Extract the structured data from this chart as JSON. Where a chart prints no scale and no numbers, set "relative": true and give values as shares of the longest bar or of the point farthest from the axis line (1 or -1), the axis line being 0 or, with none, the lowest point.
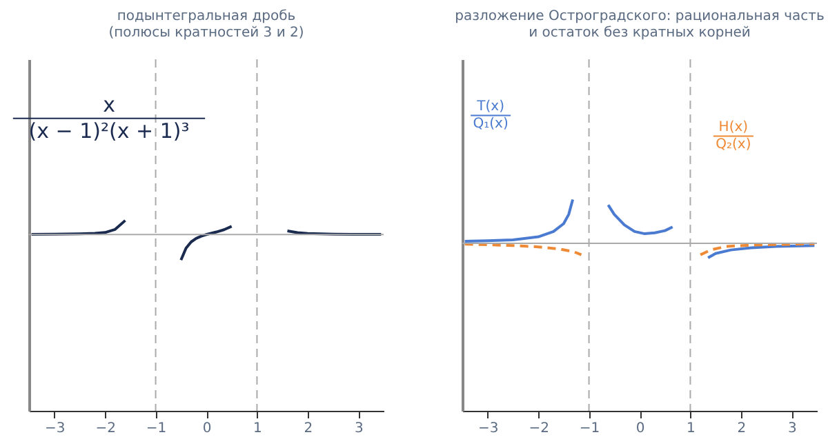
{
  "chart_data": [
    {
      "type": "line",
      "title": "подынтегральная дробь\n(полюсы кратностей 3 и 2)",
      "relative": true,
      "xlim": [
        -3.5,
        3.5
      ],
      "xticks": [
        -3,
        -2,
        -1,
        0,
        1,
        2,
        3
      ],
      "series": [
        {
          "name": "x\n(x − 1)²(x + 1)³",
          "color": "#1b2b4f",
          "line_style": "solid",
          "x": [
            -3.45,
            -3,
            -2.5,
            -2.2,
            -2,
            -1.8,
            -1.6,
            -1.1,
            -0.5,
            -0.4,
            -0.3,
            -0.2,
            -0.1,
            0,
            0.2,
            0.35,
            0.5,
            1.1,
            1.6,
            1.8,
            2,
            2.5,
            3,
            3.45
          ],
          "values": [
            0.01,
            0.013,
            0.03,
            0.05,
            0.08,
            0.2,
            0.55,
            null,
            -1,
            -0.53,
            -0.29,
            -0.15,
            -0.064,
            0,
            0.1,
            0.19,
            0.32,
            null,
            0.14,
            0.072,
            0.042,
            0.015,
            0.007,
            0.004
          ]
        }
      ],
      "ref_lines": [
        {
          "axis": "x",
          "value": -1,
          "color": "#aaaaaa",
          "line_style": "dashed"
        },
        {
          "axis": "x",
          "value": 1,
          "color": "#aaaaaa",
          "line_style": "dashed"
        },
        {
          "axis": "y",
          "value": 0,
          "color": "#aaaaaa",
          "line_style": "solid"
        }
      ]
    },
    {
      "type": "line",
      "title": "разложение Остроградского: рациональная часть\nи остаток без кратных корней",
      "relative": true,
      "xlim": [
        -3.5,
        3.5
      ],
      "xticks": [
        -3,
        -2,
        -1,
        0,
        1,
        2,
        3
      ],
      "series": [
        {
          "name": "T(x)\nQ₁(x)",
          "color": "#4a7bd0",
          "line_style": "solid",
          "x": [
            -3.45,
            -3,
            -2.5,
            -2,
            -1.7,
            -1.5,
            -1.4,
            -1.32,
            -1,
            -0.62,
            -0.5,
            -0.3,
            -0.1,
            0.1,
            0.3,
            0.5,
            0.65,
            1,
            1.35,
            1.5,
            1.8,
            2.2,
            2.7,
            3.45
          ],
          "values": [
            0.05,
            0.06,
            0.08,
            0.15,
            0.27,
            0.45,
            0.66,
            1,
            null,
            0.875,
            0.66,
            0.42,
            0.27,
            0.22,
            0.24,
            0.29,
            0.375,
            null,
            -0.33,
            -0.23,
            -0.15,
            -0.1,
            -0.07,
            -0.05
          ]
        },
        {
          "name": "H(x)\nQ₂(x)",
          "color": "#ee8a35",
          "line_style": "dashed",
          "x": [
            -3.45,
            -3,
            -2.5,
            -2,
            -1.6,
            -1.3,
            -1.15,
            0,
            1.2,
            1.4,
            1.7,
            2.2,
            3,
            3.45
          ],
          "values": [
            -0.02,
            -0.03,
            -0.05,
            -0.08,
            -0.125,
            -0.19,
            -0.26,
            null,
            -0.26,
            -0.15,
            -0.07,
            -0.04,
            -0.02,
            -0.01
          ]
        }
      ],
      "ref_lines": [
        {
          "axis": "x",
          "value": -1,
          "color": "#aaaaaa",
          "line_style": "dashed"
        },
        {
          "axis": "x",
          "value": 1,
          "color": "#aaaaaa",
          "line_style": "dashed"
        },
        {
          "axis": "y",
          "value": 0,
          "color": "#aaaaaa",
          "line_style": "solid"
        }
      ]
    }
  ]
}
